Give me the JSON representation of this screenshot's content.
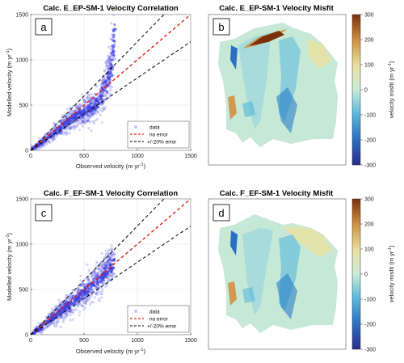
{
  "colors": {
    "scatter": "#3f3fe0",
    "no_error": "#e0201a",
    "bound": "#000000",
    "glacier_bg": "#c6e8d6"
  },
  "panel_labels": [
    "a",
    "b",
    "c",
    "d"
  ],
  "corr_tick_labels": [
    "0",
    "500",
    "1000",
    "1500"
  ],
  "colorbar": {
    "label": "velocity misfit (m yr",
    "label_sup": "-1",
    "label_close": ")",
    "ticks": [
      "300",
      "200",
      "100",
      "0",
      "-100",
      "-200",
      "-300"
    ],
    "range": [
      -300,
      300
    ],
    "colors": [
      "#2a2c8c",
      "#2a6fc4",
      "#5ab8dc",
      "#c8ecd8",
      "#e8e0a0",
      "#d09040",
      "#7a3008"
    ]
  },
  "chart_data": [
    {
      "type": "scatter",
      "title": "Calc. E_EP-SM-1 Velocity Correlation",
      "xlabel": "Observed velocity (m yr",
      "xlabel_sup": "-1",
      "xlabel_close": ")",
      "ylabel": "Modelled velocity (m yr",
      "ylabel_sup": "-1",
      "ylabel_close": ")",
      "xlim": [
        0,
        1500
      ],
      "ylim": [
        0,
        1500
      ],
      "xticks": [
        0,
        500,
        1000,
        1500
      ],
      "yticks": [
        0,
        500,
        1000,
        1500
      ],
      "grid": true,
      "legend_position": "bottom-right",
      "series": [
        {
          "name": "data",
          "trend": [
            [
              0,
              0
            ],
            [
              100,
              85
            ],
            [
              200,
              175
            ],
            [
              300,
              270
            ],
            [
              400,
              360
            ],
            [
              500,
              430
            ],
            [
              600,
              490
            ],
            [
              650,
              560
            ],
            [
              700,
              700
            ],
            [
              750,
              900
            ],
            [
              780,
              1200
            ],
            [
              790,
              1400
            ]
          ]
        },
        {
          "name": "no error",
          "points": [
            [
              0,
              0
            ],
            [
              1500,
              1500
            ]
          ]
        },
        {
          "name": "+/-20% error",
          "points_upper": [
            [
              0,
              0
            ],
            [
              1250,
              1500
            ]
          ],
          "points_lower": [
            [
              0,
              0
            ],
            [
              1500,
              1200
            ]
          ]
        }
      ]
    },
    {
      "type": "heatmap",
      "title": "Calc. E_EP-SM-1 Velocity Misfit",
      "colorbar_range": [
        -300,
        300
      ]
    },
    {
      "type": "scatter",
      "title": "Calc. F_EF-SM-1 Velocity Correlation",
      "xlabel": "Observed velocity (m yr",
      "xlabel_sup": "-1",
      "xlabel_close": ")",
      "ylabel": "Modelled velocity (m yr",
      "ylabel_sup": "-1",
      "ylabel_close": ")",
      "xlim": [
        0,
        1500
      ],
      "ylim": [
        0,
        1500
      ],
      "xticks": [
        0,
        500,
        1000,
        1500
      ],
      "yticks": [
        0,
        500,
        1000,
        1500
      ],
      "grid": true,
      "legend_position": "bottom-right",
      "series": [
        {
          "name": "data",
          "trend": [
            [
              0,
              0
            ],
            [
              100,
              85
            ],
            [
              200,
              180
            ],
            [
              300,
              280
            ],
            [
              400,
              370
            ],
            [
              500,
              470
            ],
            [
              600,
              570
            ],
            [
              700,
              690
            ],
            [
              780,
              800
            ]
          ]
        },
        {
          "name": "no error",
          "points": [
            [
              0,
              0
            ],
            [
              1500,
              1500
            ]
          ]
        },
        {
          "name": "+/-20% error",
          "points_upper": [
            [
              0,
              0
            ],
            [
              1250,
              1500
            ]
          ],
          "points_lower": [
            [
              0,
              0
            ],
            [
              1500,
              1200
            ]
          ]
        }
      ]
    },
    {
      "type": "heatmap",
      "title": "Calc. F_EF-SM-1 Velocity Misfit",
      "colorbar_range": [
        -300,
        300
      ]
    }
  ]
}
